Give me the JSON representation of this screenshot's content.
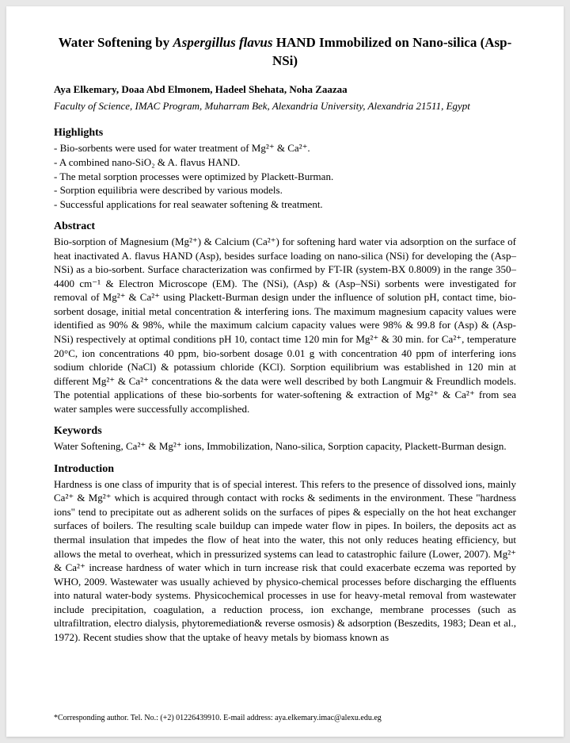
{
  "title_pre": "Water Softening by ",
  "title_italic": "Aspergillus flavus",
  "title_post": " HAND Immobilized on Nano-silica (Asp-NSi)",
  "authors": "Aya Elkemary, Doaa Abd Elmonem, Hadeel Shehata, Noha Zaazaa",
  "affiliation": "Faculty of Science, IMAC Program, Muharram Bek, Alexandria University, Alexandria 21511, Egypt",
  "highlights_head": "Highlights",
  "highlights": [
    "- Bio-sorbents were used for water treatment of Mg²⁺ & Ca²⁺.",
    "- A combined nano-SiO₂ & A. flavus HAND.",
    "- The metal sorption processes were optimized by Plackett-Burman.",
    "- Sorption equilibria were described by various models.",
    "- Successful applications for real seawater softening & treatment."
  ],
  "abstract_head": "Abstract",
  "abstract_body": "Bio-sorption of Magnesium (Mg²⁺) & Calcium (Ca²⁺) for softening hard water via adsorption on the surface of heat inactivated A. flavus HAND (Asp), besides surface loading on nano-silica (NSi) for developing the (Asp–NSi) as a bio-sorbent. Surface characterization was confirmed by FT-IR (system-BX 0.8009) in the range 350–4400 cm⁻¹ & Electron Microscope (EM). The (NSi), (Asp) & (Asp–NSi) sorbents were investigated for removal of Mg²⁺ & Ca²⁺ using Plackett-Burman design under the influence of solution pH, contact time, bio-sorbent dosage, initial metal concentration & interfering ions. The maximum magnesium capacity values were identified as 90% & 98%, while the maximum calcium capacity values were 98% & 99.8 for (Asp) & (Asp-NSi) respectively at optimal conditions pH 10, contact time 120 min for Mg²⁺ & 30 min. for Ca²⁺, temperature 20°C, ion concentrations 40 ppm, bio-sorbent dosage 0.01 g with concentration 40 ppm of interfering ions sodium chloride (NaCl) & potassium chloride (KCl). Sorption equilibrium was established in 120 min at different Mg²⁺ & Ca²⁺ concentrations & the data were well described by both Langmuir & Freundlich models. The potential applications of these bio-sorbents for water-softening & extraction of Mg²⁺ & Ca²⁺ from sea water samples were successfully accomplished.",
  "keywords_head": "Keywords",
  "keywords_body": "Water Softening, Ca²⁺ & Mg²⁺ ions, Immobilization, Nano-silica, Sorption capacity, Plackett-Burman design.",
  "intro_head": "Introduction",
  "intro_body": "Hardness is one class of impurity that is of special interest. This refers to the presence of dissolved ions, mainly Ca²⁺ & Mg²⁺ which is acquired through contact with rocks & sediments in the environment. These \"hardness ions\" tend to precipitate out as adherent solids on the surfaces of pipes & especially on the hot heat exchanger surfaces of boilers. The resulting scale buildup can impede water flow in pipes. In boilers, the deposits act as thermal insulation that impedes the flow of heat into the water, this not only reduces heating efficiency, but allows the metal to overheat, which in pressurized systems can lead to catastrophic failure (Lower, 2007). Mg²⁺ & Ca²⁺ increase hardness of water which in turn increase risk that could exacerbate eczema was reported by WHO, 2009. Wastewater was usually achieved by physico-chemical processes before discharging the effluents into natural water-body systems. Physicochemical processes in use for heavy-metal removal from wastewater include precipitation, coagulation, a reduction process, ion exchange, membrane processes (such as ultrafiltration, electro dialysis, phytoremediation& reverse osmosis) & adsorption (Beszedits, 1983; Dean et al., 1972). Recent studies show that the uptake of heavy metals by biomass known as",
  "footnote": "*Corresponding author. Tel. No.: (+2) 01226439910. E-mail address: aya.elkemary.imac@alexu.edu.eg"
}
